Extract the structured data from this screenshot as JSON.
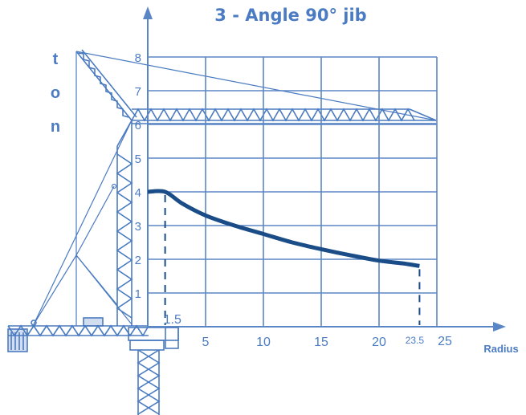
{
  "chart_data": {
    "type": "line",
    "title": "3 - Angle 90° jib",
    "xlabel": "Radius",
    "ylabel": "ton",
    "xlim": [
      0,
      25
    ],
    "ylim": [
      0,
      8
    ],
    "grid": true,
    "xticks": [
      {
        "value": 1.5,
        "label": "1.5"
      },
      {
        "value": 5,
        "label": "5"
      },
      {
        "value": 10,
        "label": "10"
      },
      {
        "value": 15,
        "label": "15"
      },
      {
        "value": 20,
        "label": "20"
      },
      {
        "value": 23.5,
        "label": "23.5"
      },
      {
        "value": 25,
        "label": "25"
      }
    ],
    "yticks": [
      {
        "value": 1,
        "label": "1"
      },
      {
        "value": 2,
        "label": "2"
      },
      {
        "value": 3,
        "label": "3"
      },
      {
        "value": 4,
        "label": "4"
      },
      {
        "value": 5,
        "label": "5"
      },
      {
        "value": 6,
        "label": "6"
      },
      {
        "value": 7,
        "label": "7"
      },
      {
        "value": 8,
        "label": "8"
      }
    ],
    "series": [
      {
        "x": [
          0,
          1.5,
          3,
          5,
          7.5,
          10,
          12.5,
          15,
          17.5,
          20,
          22,
          23.5
        ],
        "y": [
          4.0,
          4.0,
          3.65,
          3.3,
          3.0,
          2.75,
          2.5,
          2.3,
          2.12,
          1.96,
          1.88,
          1.8
        ]
      }
    ],
    "reference_lines": [
      1.5,
      23.5
    ],
    "colors": {
      "axis": "#5b86c5",
      "curve": "#1a4c87",
      "crane": "#4a7bc0",
      "text": "#4b7cc3"
    }
  }
}
